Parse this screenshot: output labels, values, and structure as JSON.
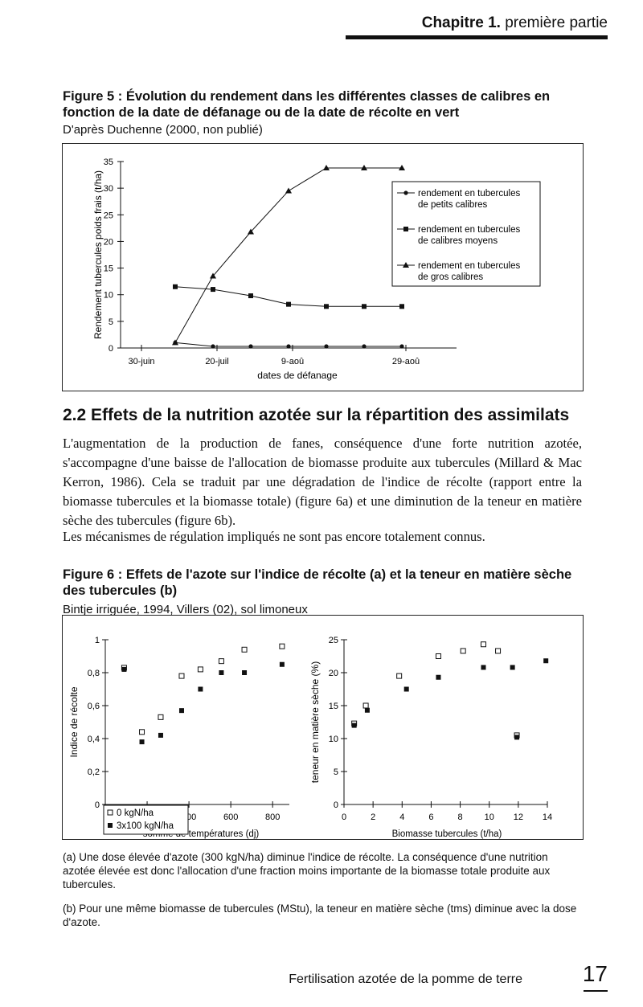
{
  "header": {
    "chapter": "Chapitre 1.",
    "part": "première partie"
  },
  "figure5": {
    "title": "Figure 5 : Évolution du rendement dans les différentes classes de calibres en fonction de la date de défanage ou de la date de récolte en vert",
    "source": "D'après Duchenne (2000, non publié)"
  },
  "section": {
    "heading": "2.2 Effets de la nutrition azotée sur la répartition des assimilats",
    "para1": "L'augmentation de la production de fanes, conséquence d'une forte nutrition azotée, s'accompagne d'une baisse de l'allocation de biomasse produite aux tubercules (Millard & Mac Kerron, 1986). Cela se traduit par une dégradation de l'indice de récolte (rapport entre la biomasse tubercules et la biomasse totale) (figure 6a) et une diminution de la teneur en matière sèche des tubercules (figure 6b).",
    "para2": "Les mécanismes de régulation impliqués ne sont pas encore totalement connus."
  },
  "figure6": {
    "title": "Figure 6 : Effets de l'azote sur l'indice de récolte (a) et la teneur en matière sèche des tubercules (b)",
    "source": "Bintje irriguée, 1994, Villers (02), sol limoneux"
  },
  "notes": {
    "a": "(a) Une dose élevée d'azote (300 kgN/ha) diminue l'indice de récolte. La conséquence d'une nutrition azotée élevée est donc l'allocation d'une fraction moins importante de la biomasse totale produite aux tubercules.",
    "b": "(b) Pour une même biomasse de tubercules (MStu), la teneur en matière sèche (tms) diminue avec la dose d'azote."
  },
  "footer": {
    "text": "Fertilisation azotée de la pomme de terre",
    "page": "17"
  },
  "chart_data": [
    {
      "type": "line",
      "ylabel": "Rendement tubercules poids frais (t/ha)",
      "xlabel": "dates de défanage",
      "ylim": [
        0,
        35
      ],
      "yticks": [
        0,
        5,
        10,
        15,
        20,
        25,
        30,
        35
      ],
      "xticks": [
        "30-juin",
        "20-juil",
        "9-aoû",
        "29-aoû"
      ],
      "x": [
        "30-juin",
        "10-juil",
        "20-juil",
        "30-juil",
        "9-aoû",
        "19-aoû",
        "29-aoû"
      ],
      "legend_position": "right",
      "series": [
        {
          "name": "rendement en tubercules de petits calibres",
          "marker": "circle",
          "values": [
            1,
            0.3,
            0.3,
            0.3,
            0.3,
            0.3,
            0.3
          ]
        },
        {
          "name": "rendement en tubercules de calibres moyens",
          "marker": "square",
          "values": [
            11.5,
            11,
            9.8,
            8.2,
            7.8,
            7.8,
            7.8
          ]
        },
        {
          "name": "rendement en tubercules de gros calibres",
          "marker": "triangle",
          "values": [
            1,
            13.5,
            21.8,
            29.5,
            33.8,
            33.8,
            33.8
          ]
        }
      ]
    },
    {
      "type": "scatter",
      "ylabel": "Indice de récolte",
      "xlabel": "somme de températures (dj)",
      "xlim": [
        0,
        880
      ],
      "ylim": [
        0,
        1
      ],
      "xticks": [
        0,
        200,
        400,
        600,
        800
      ],
      "yticks": [
        "0",
        "0,2",
        "0,4",
        "0,6",
        "0,8",
        "1"
      ],
      "legend_position": "bottom-left",
      "series": [
        {
          "name": "0 kgN/ha",
          "marker": "open-square",
          "points": [
            [
              90,
              0.83
            ],
            [
              175,
              0.44
            ],
            [
              265,
              0.53
            ],
            [
              365,
              0.78
            ],
            [
              455,
              0.82
            ],
            [
              555,
              0.87
            ],
            [
              665,
              0.94
            ],
            [
              845,
              0.96
            ]
          ]
        },
        {
          "name": "3x100 kgN/ha",
          "marker": "filled-square",
          "points": [
            [
              90,
              0.82
            ],
            [
              175,
              0.38
            ],
            [
              265,
              0.42
            ],
            [
              365,
              0.57
            ],
            [
              455,
              0.7
            ],
            [
              555,
              0.8
            ],
            [
              665,
              0.8
            ],
            [
              845,
              0.85
            ]
          ]
        }
      ]
    },
    {
      "type": "scatter",
      "ylabel": "teneur en matière sèche (%)",
      "xlabel": "Biomasse tubercules (t/ha)",
      "xlim": [
        0,
        14
      ],
      "ylim": [
        0,
        25
      ],
      "xticks": [
        0,
        2,
        4,
        6,
        8,
        10,
        12,
        14
      ],
      "yticks": [
        0,
        5,
        10,
        15,
        20,
        25
      ],
      "series": [
        {
          "name": "0 kgN/ha",
          "marker": "open-square",
          "points": [
            [
              0.7,
              12.3
            ],
            [
              1.5,
              15.0
            ],
            [
              3.8,
              19.5
            ],
            [
              6.5,
              22.5
            ],
            [
              8.2,
              23.3
            ],
            [
              9.6,
              24.3
            ],
            [
              10.6,
              23.3
            ],
            [
              11.9,
              10.5
            ]
          ]
        },
        {
          "name": "3x100 kgN/ha",
          "marker": "filled-square",
          "points": [
            [
              0.7,
              12.0
            ],
            [
              1.6,
              14.3
            ],
            [
              4.3,
              17.5
            ],
            [
              6.5,
              19.3
            ],
            [
              9.6,
              20.8
            ],
            [
              11.6,
              20.8
            ],
            [
              11.9,
              10.2
            ],
            [
              13.9,
              21.8
            ]
          ]
        }
      ]
    }
  ]
}
